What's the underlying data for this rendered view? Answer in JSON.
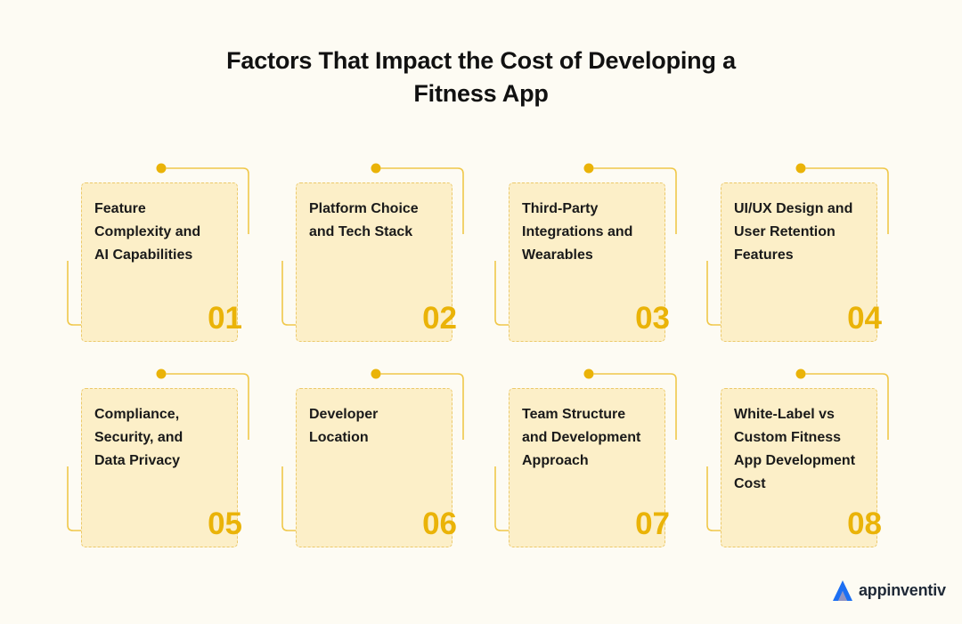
{
  "title": {
    "line1": "Factors That Impact the Cost of Developing a",
    "line2": "Fitness App"
  },
  "colors": {
    "accent": "#eab308",
    "card_fill": "#fcefc8",
    "card_border": "#ecc96a",
    "line": "#f0c84a",
    "background": "#fdfbf3"
  },
  "cards": [
    {
      "label": "Feature Complexity and AI Capabilities",
      "lines": [
        "Feature",
        "Complexity and",
        "AI Capabilities"
      ],
      "number": "01"
    },
    {
      "label": "Platform Choice and Tech Stack",
      "lines": [
        "Platform Choice",
        "and Tech Stack"
      ],
      "number": "02"
    },
    {
      "label": "Third-Party Integrations and Wearables",
      "lines": [
        "Third-Party",
        "Integrations and",
        "Wearables"
      ],
      "number": "03"
    },
    {
      "label": "UI/UX Design and User Retention Features",
      "lines": [
        "UI/UX Design and",
        "User Retention",
        "Features"
      ],
      "number": "04"
    },
    {
      "label": "Compliance, Security, and Data Privacy",
      "lines": [
        "Compliance,",
        "Security, and",
        "Data Privacy"
      ],
      "number": "05"
    },
    {
      "label": "Developer Location",
      "lines": [
        "Developer",
        "Location"
      ],
      "number": "06"
    },
    {
      "label": "Team Structure and Development Approach",
      "lines": [
        "Team Structure",
        "and Development",
        "Approach"
      ],
      "number": "07"
    },
    {
      "label": "White-Label vs Custom Fitness App Development Cost",
      "lines": [
        "White-Label vs",
        "Custom Fitness",
        "App Development",
        "Cost"
      ],
      "number": "08"
    }
  ],
  "logo": {
    "text": "appinventiv",
    "icon": "appinventiv-logo-icon"
  }
}
